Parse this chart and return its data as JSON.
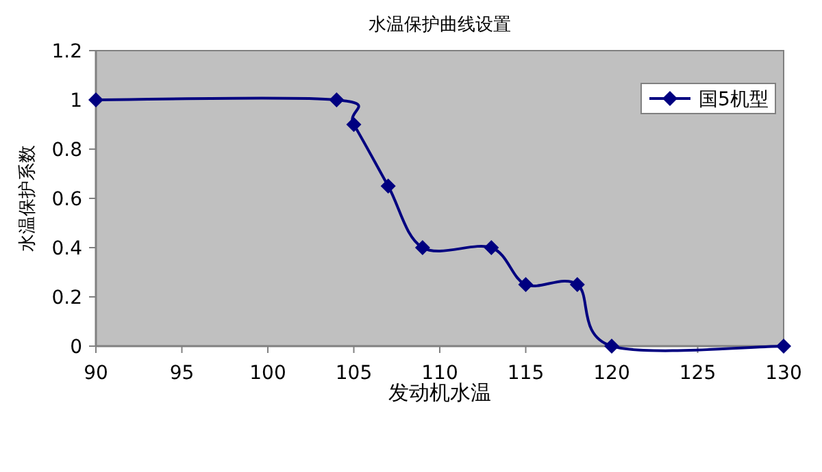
{
  "chart_data": {
    "type": "line",
    "title": "水温保护曲线设置",
    "xlabel": "发动机水温",
    "ylabel": "水温保护系数",
    "x": [
      90,
      104,
      105,
      107,
      109,
      113,
      115,
      118,
      120,
      130
    ],
    "series": [
      {
        "name": "国5机型",
        "color": "#000080",
        "values": [
          1,
          1,
          0.9,
          0.65,
          0.4,
          0.4,
          0.25,
          0.25,
          0,
          0
        ]
      }
    ],
    "xlim": [
      90,
      130
    ],
    "xticks": [
      90,
      95,
      100,
      105,
      110,
      115,
      120,
      125,
      130
    ],
    "ylim": [
      0,
      1.2
    ],
    "yticks": [
      0,
      0.2,
      0.4,
      0.6,
      0.8,
      1,
      1.2
    ],
    "marker": "diamond",
    "line_style": "solid",
    "grid": false,
    "legend": "top right"
  }
}
